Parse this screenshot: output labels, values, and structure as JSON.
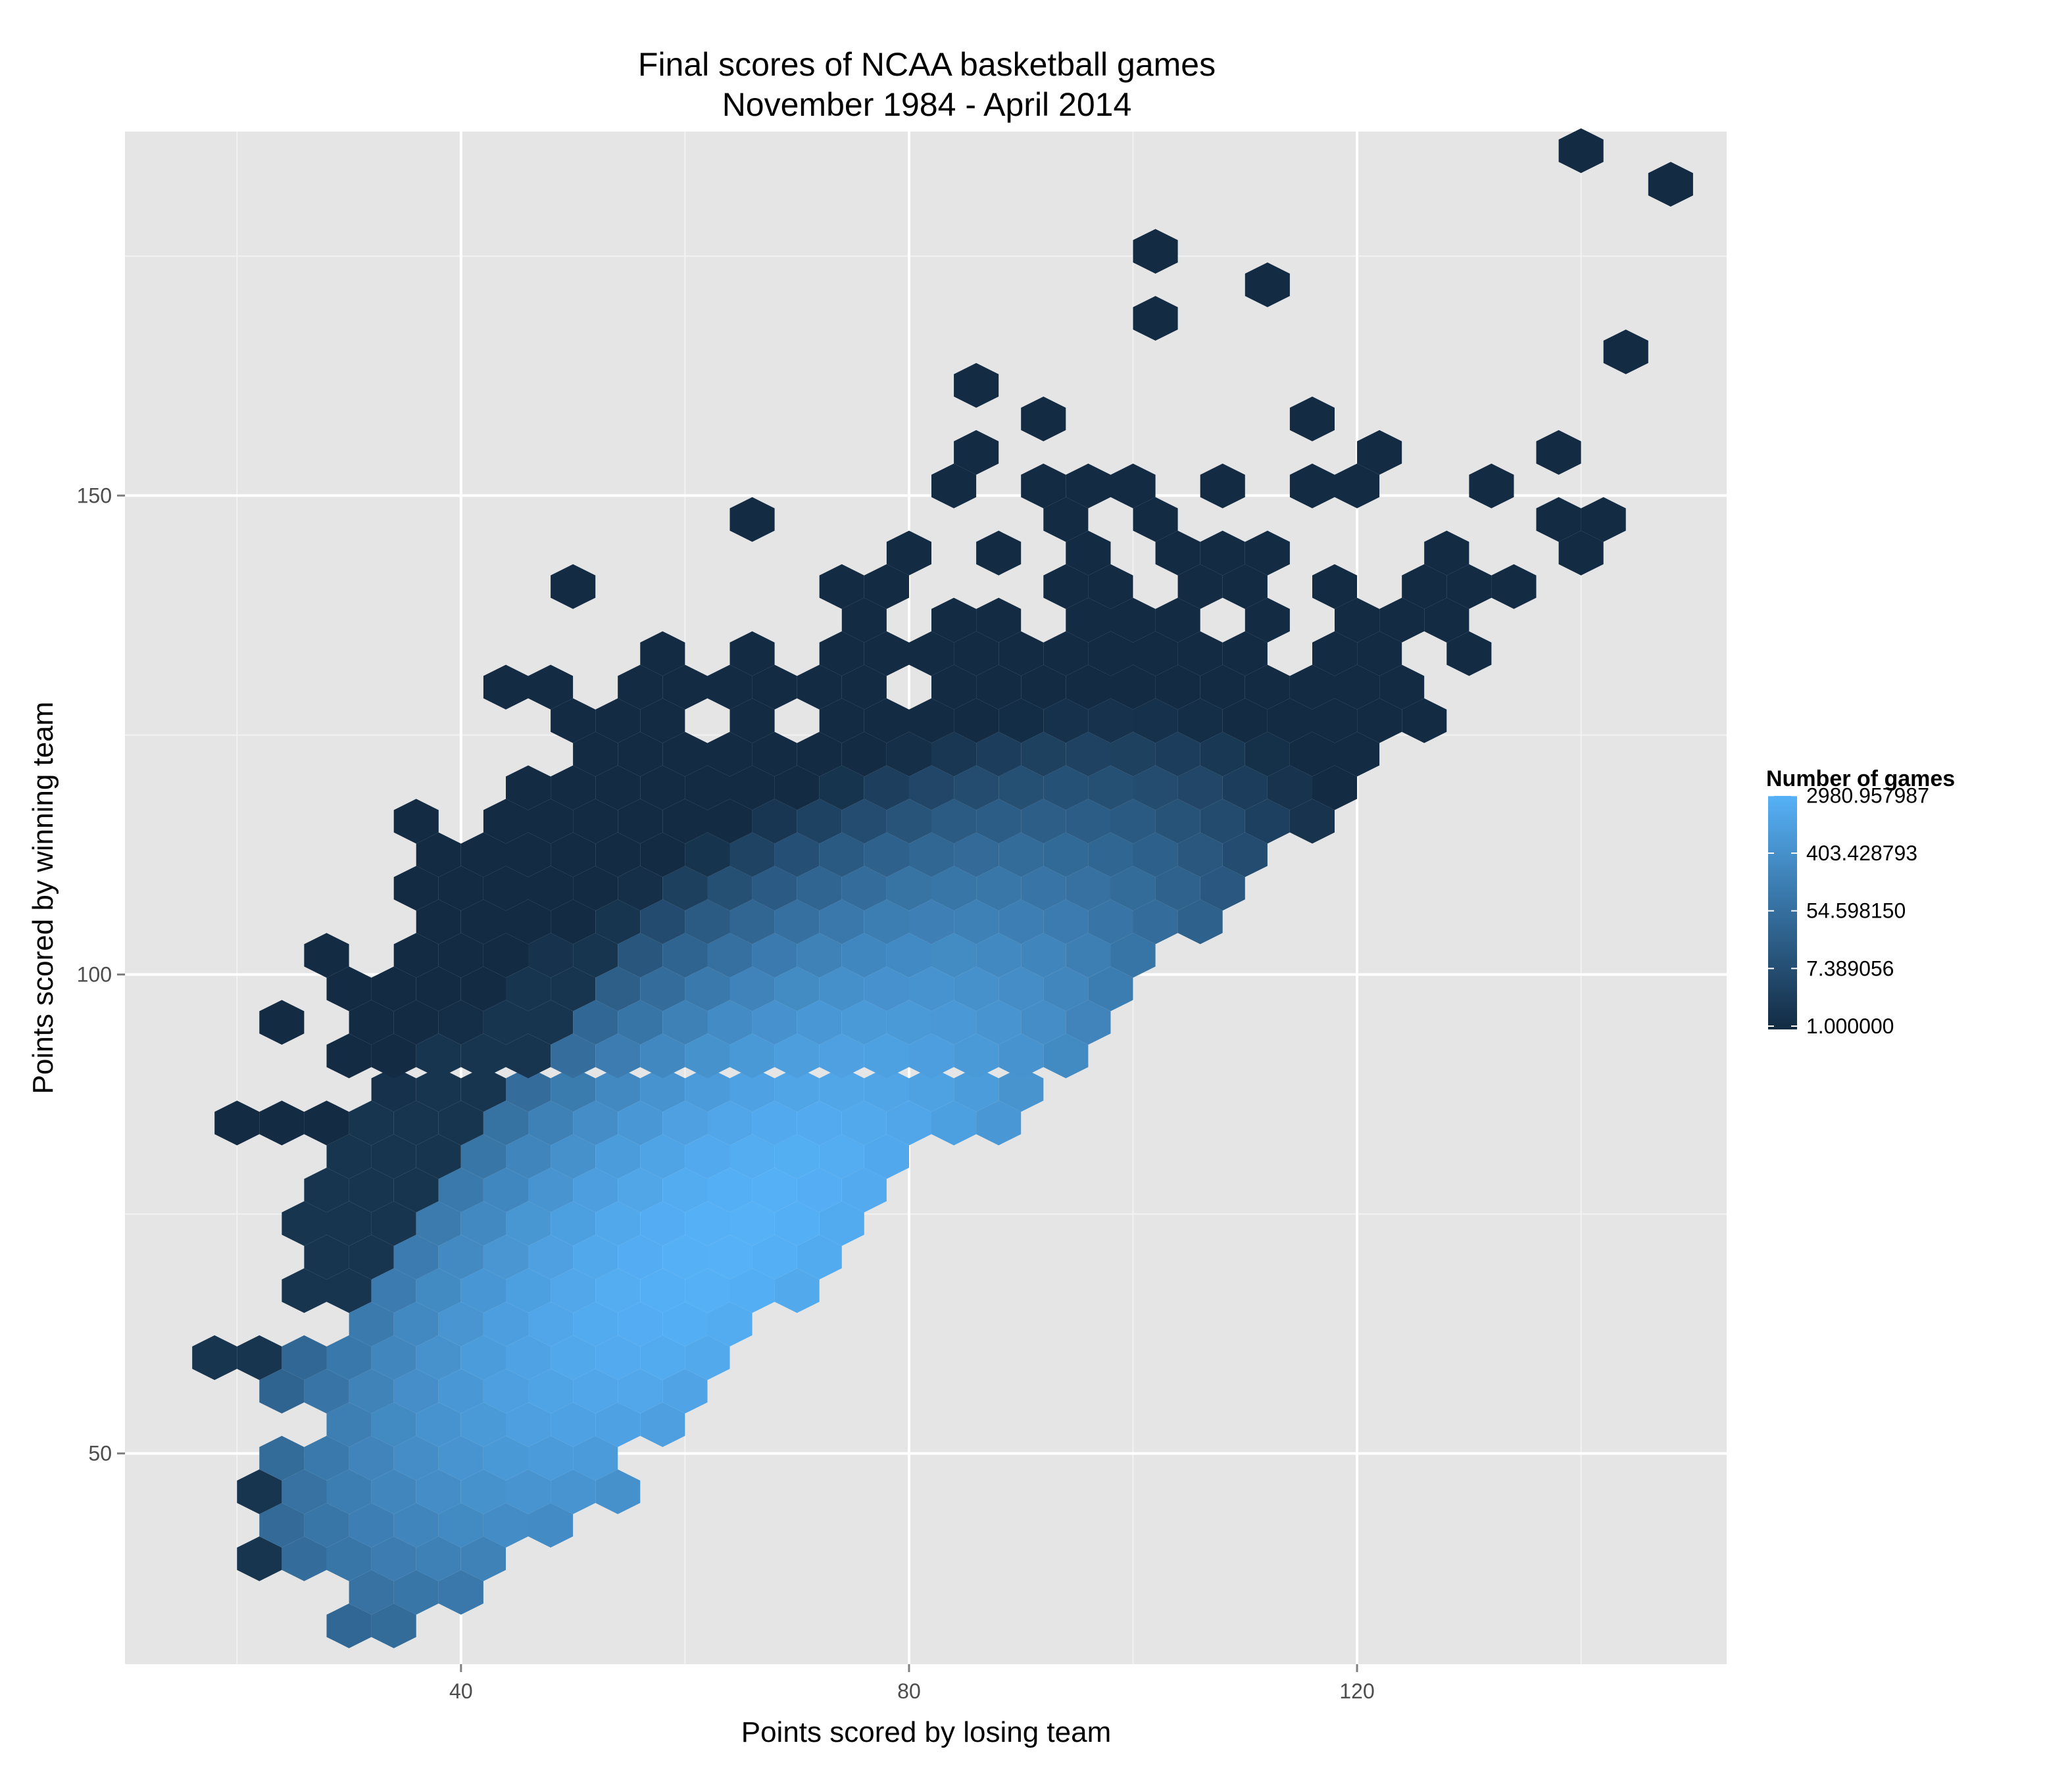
{
  "chart_data": {
    "type": "heatmap",
    "subtype": "hexbin",
    "title_lines": [
      "Final scores of NCAA basketball games",
      "November 1984 - April 2014"
    ],
    "xlabel": "Points scored by losing team",
    "ylabel": "Points scored by winning team",
    "xlim": [
      10,
      153
    ],
    "ylim": [
      28,
      188
    ],
    "x_ticks": [
      40,
      80,
      120
    ],
    "y_ticks": [
      50,
      100,
      150
    ],
    "grid": true,
    "legend": {
      "title": "Number of games",
      "placement": "right",
      "labels": [
        "2980.957987",
        "403.428793",
        "54.598150",
        "7.389056",
        "1.000000"
      ],
      "log_values": [
        8,
        6,
        4,
        2,
        0
      ],
      "log_min": 0,
      "log_max": 8.1,
      "color_low": "#132B43",
      "color_high": "#56B1F7"
    },
    "bin_width_x": 4,
    "bin_height_y": 3.5,
    "hex_rows": [
      {
        "y": 32,
        "x": [
          30,
          34
        ]
      },
      {
        "y": 35.5,
        "x": [
          32,
          36,
          40
        ]
      },
      {
        "y": 39,
        "x": [
          22,
          26,
          30,
          34,
          38,
          42
        ]
      },
      {
        "y": 42.5,
        "x": [
          24,
          28,
          32,
          36,
          40,
          44,
          48
        ]
      },
      {
        "y": 46,
        "x": [
          22,
          26,
          30,
          34,
          38,
          42,
          46,
          50,
          54
        ]
      },
      {
        "y": 49.5,
        "x": [
          24,
          28,
          32,
          36,
          40,
          44,
          48,
          52
        ]
      },
      {
        "y": 53,
        "x": [
          30,
          34,
          38,
          42,
          46,
          50,
          54,
          58
        ]
      },
      {
        "y": 56.5,
        "x": [
          24,
          28,
          32,
          36,
          40,
          44,
          48,
          52,
          56,
          60
        ]
      },
      {
        "y": 60,
        "x": [
          18,
          22,
          26,
          30,
          34,
          38,
          42,
          46,
          50,
          54,
          58,
          62
        ]
      },
      {
        "y": 63.5,
        "x": [
          32,
          36,
          40,
          44,
          48,
          52,
          56,
          60,
          64
        ]
      },
      {
        "y": 67,
        "x": [
          26,
          30,
          34,
          38,
          42,
          46,
          50,
          54,
          58,
          62,
          66,
          70
        ]
      },
      {
        "y": 70.5,
        "x": [
          28,
          32,
          36,
          40,
          44,
          48,
          52,
          56,
          60,
          64,
          68,
          72
        ]
      },
      {
        "y": 74,
        "x": [
          26,
          30,
          34,
          38,
          42,
          46,
          50,
          54,
          58,
          62,
          66,
          70,
          74
        ]
      },
      {
        "y": 77.5,
        "x": [
          28,
          32,
          36,
          40,
          44,
          48,
          52,
          56,
          60,
          64,
          68,
          72,
          76
        ]
      },
      {
        "y": 81,
        "x": [
          30,
          34,
          38,
          42,
          46,
          50,
          54,
          58,
          62,
          66,
          70,
          74,
          78
        ]
      },
      {
        "y": 84.5,
        "x": [
          20,
          24,
          28,
          32,
          36,
          40,
          44,
          48,
          52,
          56,
          60,
          64,
          68,
          72,
          76,
          80,
          84,
          88
        ]
      },
      {
        "y": 88,
        "x": [
          34,
          38,
          42,
          46,
          50,
          54,
          58,
          62,
          66,
          70,
          74,
          78,
          82,
          86,
          90
        ]
      },
      {
        "y": 91.5,
        "x": [
          30,
          34,
          38,
          42,
          46,
          50,
          54,
          58,
          62,
          66,
          70,
          74,
          78,
          82,
          86,
          90,
          94
        ]
      },
      {
        "y": 95,
        "x": [
          24,
          32,
          36,
          40,
          44,
          48,
          52,
          56,
          60,
          64,
          68,
          72,
          76,
          80,
          84,
          88,
          92,
          96
        ]
      },
      {
        "y": 98.5,
        "x": [
          30,
          34,
          38,
          42,
          46,
          50,
          54,
          58,
          62,
          66,
          70,
          74,
          78,
          82,
          86,
          90,
          94,
          98
        ]
      },
      {
        "y": 102,
        "x": [
          28,
          36,
          40,
          44,
          48,
          52,
          56,
          60,
          64,
          68,
          72,
          76,
          80,
          84,
          88,
          92,
          96,
          100
        ]
      },
      {
        "y": 105.5,
        "x": [
          38,
          42,
          46,
          50,
          54,
          58,
          62,
          66,
          70,
          74,
          78,
          82,
          86,
          90,
          94,
          98,
          102,
          106
        ]
      },
      {
        "y": 109,
        "x": [
          36,
          40,
          44,
          48,
          52,
          56,
          60,
          64,
          68,
          72,
          76,
          80,
          84,
          88,
          92,
          96,
          100,
          104,
          108
        ]
      },
      {
        "y": 112.5,
        "x": [
          38,
          42,
          46,
          50,
          54,
          58,
          62,
          66,
          70,
          74,
          78,
          82,
          86,
          90,
          94,
          98,
          102,
          106,
          110
        ]
      },
      {
        "y": 116,
        "x": [
          36,
          44,
          48,
          52,
          56,
          60,
          64,
          68,
          72,
          76,
          80,
          84,
          88,
          92,
          96,
          100,
          104,
          108,
          112,
          116
        ]
      },
      {
        "y": 119.5,
        "x": [
          46,
          50,
          54,
          58,
          62,
          66,
          70,
          74,
          78,
          82,
          86,
          90,
          94,
          98,
          102,
          106,
          110,
          114,
          118
        ]
      },
      {
        "y": 123,
        "x": [
          52,
          56,
          60,
          64,
          68,
          72,
          76,
          80,
          84,
          88,
          92,
          96,
          100,
          104,
          108,
          112,
          116,
          120
        ]
      },
      {
        "y": 126.5,
        "x": [
          50,
          54,
          58,
          66,
          74,
          78,
          82,
          86,
          90,
          94,
          98,
          102,
          106,
          110,
          114,
          118,
          122,
          126
        ]
      },
      {
        "y": 130,
        "x": [
          44,
          48,
          56,
          60,
          64,
          68,
          72,
          76,
          84,
          88,
          92,
          96,
          100,
          104,
          108,
          112,
          116,
          120,
          124
        ]
      },
      {
        "y": 133.5,
        "x": [
          58,
          66,
          74,
          78,
          82,
          86,
          90,
          94,
          98,
          102,
          106,
          110,
          118,
          122,
          130
        ]
      },
      {
        "y": 137,
        "x": [
          76,
          84,
          88,
          96,
          100,
          104,
          112,
          120,
          124,
          128
        ]
      },
      {
        "y": 140.5,
        "x": [
          50,
          74,
          78,
          94,
          98,
          106,
          110,
          118,
          126,
          130,
          134
        ]
      },
      {
        "y": 144,
        "x": [
          80,
          88,
          96,
          104,
          108,
          112,
          128,
          140
        ]
      },
      {
        "y": 147.5,
        "x": [
          66,
          94,
          102,
          138,
          142
        ]
      },
      {
        "y": 151,
        "x": [
          84,
          92,
          96,
          100,
          108,
          116,
          120,
          132
        ]
      },
      {
        "y": 154.5,
        "x": [
          86,
          122,
          138
        ]
      },
      {
        "y": 158,
        "x": [
          92,
          116
        ]
      },
      {
        "y": 161.5,
        "x": [
          86
        ]
      },
      {
        "y": 165,
        "x": [
          144
        ]
      },
      {
        "y": 168.5,
        "x": [
          102
        ]
      },
      {
        "y": 172,
        "x": [
          112
        ]
      },
      {
        "y": 175.5,
        "x": [
          102
        ]
      },
      {
        "y": 182.5,
        "x": [
          148
        ]
      },
      {
        "y": 186,
        "x": [
          140
        ]
      }
    ],
    "count_model": {
      "center_x": 64,
      "center_y": 72,
      "direction": [
        0.7,
        0.71
      ],
      "peak_log": 8.1,
      "along_scale": 0.0016,
      "across_scale": 0.0072,
      "edge_bias": 0.5
    }
  }
}
